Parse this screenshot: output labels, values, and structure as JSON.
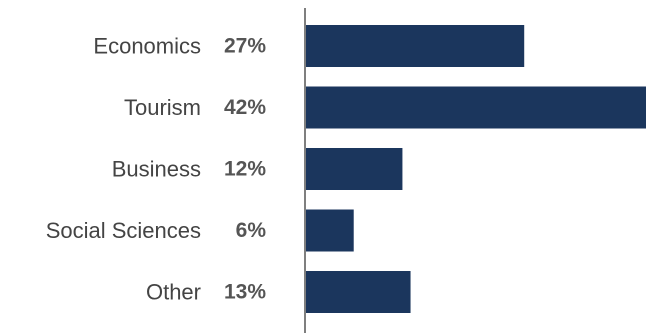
{
  "chart_data": {
    "type": "bar",
    "orientation": "horizontal",
    "categories": [
      "Economics",
      "Tourism",
      "Business",
      "Social Sciences",
      "Other"
    ],
    "values": [
      27,
      42,
      12,
      6,
      13
    ],
    "value_labels": [
      "27%",
      "42%",
      "12%",
      "6%",
      "13%"
    ],
    "unit": "%",
    "xlim": [
      0,
      42
    ],
    "grid": false,
    "legend": "none",
    "bar_color": "#1b365d",
    "axis_color": "#555555",
    "label_color": "#444444",
    "value_label_color": "#555555"
  }
}
